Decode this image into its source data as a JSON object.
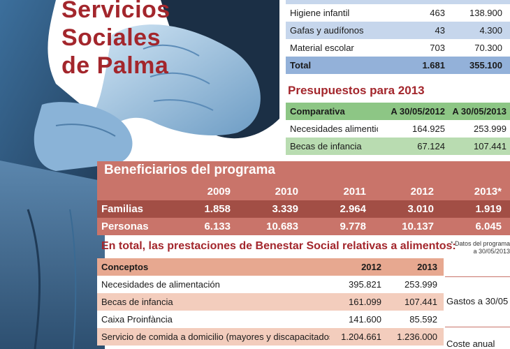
{
  "headline": [
    "Servicios",
    "Sociales",
    "de Palma"
  ],
  "table_top": {
    "rows": [
      {
        "concepto": "Higiene infantil",
        "a": "463",
        "b": "138.900",
        "style": "white"
      },
      {
        "concepto": "Gafas y audífonos",
        "a": "43",
        "b": "4.300",
        "style": "blue"
      },
      {
        "concepto": "Material escolar",
        "a": "703",
        "b": "70.300",
        "style": "white"
      },
      {
        "concepto": "Total",
        "a": "1.681",
        "b": "355.100",
        "style": "blue-dark"
      }
    ]
  },
  "presupuestos": {
    "title": "Presupuestos para 2013",
    "header": [
      "Comparativa",
      "A 30/05/2012",
      "A 30/05/2013"
    ],
    "rows": [
      {
        "concepto": "Necesidades alimenticias",
        "a": "164.925",
        "b": "253.999"
      },
      {
        "concepto": "Becas de infancia",
        "a": "67.124",
        "b": "107.441"
      }
    ]
  },
  "beneficiarios": {
    "title": "Beneficiarios del programa",
    "years": [
      "2009",
      "2010",
      "2011",
      "2012",
      "2013*"
    ],
    "rows": [
      {
        "label": "Familias",
        "values": [
          "1.858",
          "3.339",
          "2.964",
          "3.010",
          "1.919"
        ]
      },
      {
        "label": "Personas",
        "values": [
          "6.133",
          "10.683",
          "9.778",
          "10.137",
          "6.045"
        ]
      }
    ]
  },
  "en_total": {
    "title": "En total, las prestaciones de Benestar Social relativas a alimentos:",
    "note": "* Datos del programa a 30/05/2013",
    "header": [
      "Conceptos",
      "2012",
      "2013"
    ],
    "rows": [
      {
        "concepto": "Necesidades de alimentación",
        "a": "395.821",
        "b": "253.999",
        "style": "white"
      },
      {
        "concepto": "Becas de infancia",
        "a": "161.099",
        "b": "107.441",
        "style": "salmon-light"
      },
      {
        "concepto": "Caixa Proinfància",
        "a": "141.600",
        "b": "85.592",
        "style": "white"
      },
      {
        "concepto": "Servicio de comida a domicilio (mayores y discapacitados)",
        "a": "1.204.661",
        "b": "1.236.000",
        "style": "salmon-light"
      }
    ],
    "side_labels": [
      "Gastos a 30/05",
      "Coste anual"
    ]
  }
}
